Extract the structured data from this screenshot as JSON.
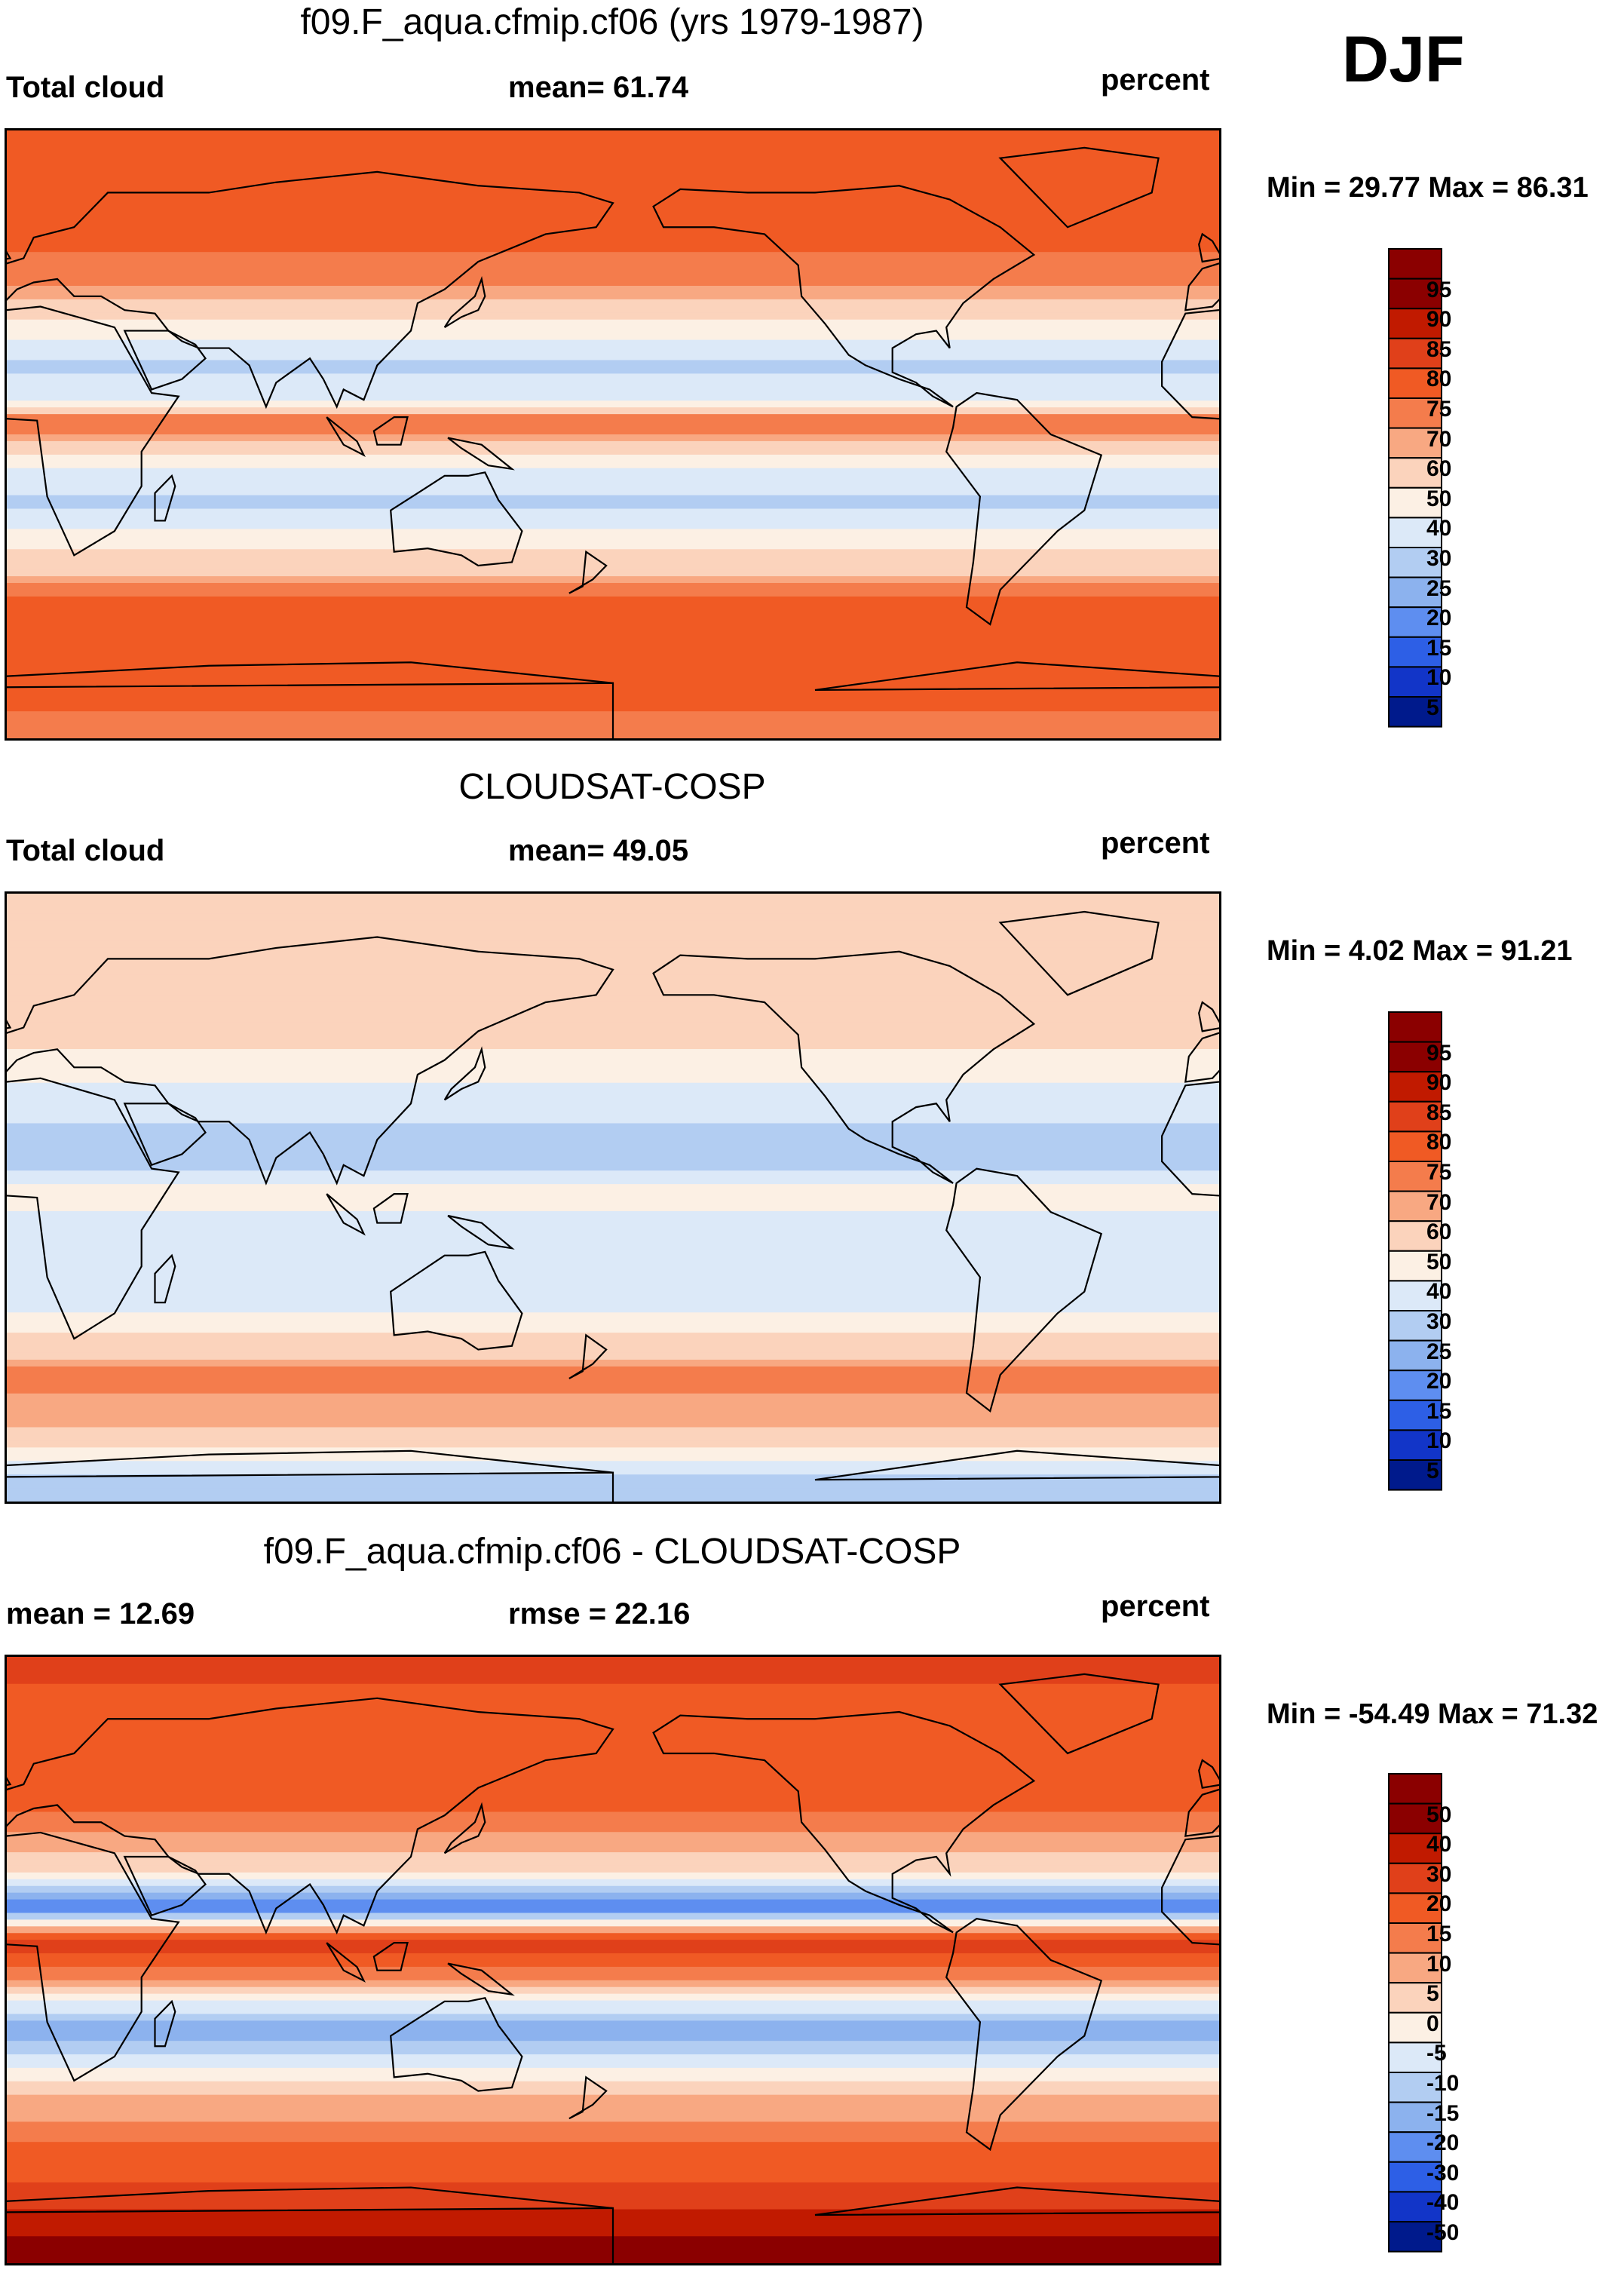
{
  "season": "DJF",
  "units": "percent",
  "chart_data": [
    {
      "type": "heatmap",
      "title": "f09.F_aqua.cfmip.cf06 (yrs 1979-1987)",
      "variable": "Total cloud",
      "mean_label": "mean=  61.74",
      "mean": 61.74,
      "units": "percent",
      "minmax_label": "Min =  29.77 Max =  86.31",
      "min": 29.77,
      "max": 86.31,
      "colorbar_levels": [
        "95",
        "90",
        "85",
        "80",
        "75",
        "70",
        "60",
        "50",
        "40",
        "30",
        "25",
        "20",
        "15",
        "10",
        "5"
      ],
      "colorbar_colors": [
        "#8b0000",
        "#c11a00",
        "#e0401a",
        "#f05a24",
        "#f47c4c",
        "#f8a882",
        "#fbd3bc",
        "#fcf0e4",
        "#dce9f8",
        "#b2cdf2",
        "#8cb2ee",
        "#5e8ef0",
        "#2d5fe6",
        "#1235c8",
        "#001a8c"
      ],
      "zonal_profile": [
        {
          "lat": 90,
          "value": 80
        },
        {
          "lat": 60,
          "value": 82
        },
        {
          "lat": 45,
          "value": 78
        },
        {
          "lat": 30,
          "value": 55
        },
        {
          "lat": 20,
          "value": 36
        },
        {
          "lat": 10,
          "value": 48
        },
        {
          "lat": 5,
          "value": 80
        },
        {
          "lat": 0,
          "value": 74
        },
        {
          "lat": -10,
          "value": 48
        },
        {
          "lat": -20,
          "value": 36
        },
        {
          "lat": -35,
          "value": 62
        },
        {
          "lat": -50,
          "value": 84
        },
        {
          "lat": -70,
          "value": 82
        },
        {
          "lat": -90,
          "value": 78
        }
      ]
    },
    {
      "type": "heatmap",
      "title": "CLOUDSAT-COSP",
      "variable": "Total cloud",
      "mean_label": "mean=  49.05",
      "mean": 49.05,
      "units": "percent",
      "minmax_label": "Min =   4.02 Max =  91.21",
      "min": 4.02,
      "max": 91.21,
      "colorbar_levels": [
        "95",
        "90",
        "85",
        "80",
        "75",
        "70",
        "60",
        "50",
        "40",
        "30",
        "25",
        "20",
        "15",
        "10",
        "5"
      ],
      "colorbar_colors": [
        "#8b0000",
        "#c11a00",
        "#e0401a",
        "#f05a24",
        "#f47c4c",
        "#f8a882",
        "#fbd3bc",
        "#fcf0e4",
        "#dce9f8",
        "#b2cdf2",
        "#8cb2ee",
        "#5e8ef0",
        "#2d5fe6",
        "#1235c8",
        "#001a8c"
      ],
      "zonal_profile": [
        {
          "lat": 80,
          "value": 60
        },
        {
          "lat": 50,
          "value": 65
        },
        {
          "lat": 30,
          "value": 45
        },
        {
          "lat": 15,
          "value": 30
        },
        {
          "lat": 5,
          "value": 55
        },
        {
          "lat": -10,
          "value": 40
        },
        {
          "lat": -25,
          "value": 45
        },
        {
          "lat": -45,
          "value": 78
        },
        {
          "lat": -60,
          "value": 70
        },
        {
          "lat": -75,
          "value": 35
        }
      ]
    },
    {
      "type": "heatmap",
      "title": "f09.F_aqua.cfmip.cf06 - CLOUDSAT-COSP",
      "mean_label": "mean =  12.69",
      "mean": 12.69,
      "rmse_label": "rmse =  22.16",
      "rmse": 22.16,
      "units": "percent",
      "minmax_label": "Min = -54.49 Max =  71.32",
      "min": -54.49,
      "max": 71.32,
      "colorbar_levels": [
        "50",
        "40",
        "30",
        "20",
        "15",
        "10",
        "5",
        "0",
        "-5",
        "-10",
        "-15",
        "-20",
        "-30",
        "-40",
        "-50"
      ],
      "colorbar_colors": [
        "#8b0000",
        "#c11a00",
        "#e0401a",
        "#f05a24",
        "#f47c4c",
        "#f8a882",
        "#fbd3bc",
        "#fcf0e4",
        "#dce9f8",
        "#b2cdf2",
        "#8cb2ee",
        "#5e8ef0",
        "#2d5fe6",
        "#1235c8",
        "#001a8c"
      ],
      "zonal_profile": [
        {
          "lat": 80,
          "value": 30
        },
        {
          "lat": 50,
          "value": 25
        },
        {
          "lat": 25,
          "value": 5
        },
        {
          "lat": 15,
          "value": -20
        },
        {
          "lat": 5,
          "value": 35
        },
        {
          "lat": -10,
          "value": 5
        },
        {
          "lat": -20,
          "value": -15
        },
        {
          "lat": -40,
          "value": 10
        },
        {
          "lat": -65,
          "value": 30
        },
        {
          "lat": -80,
          "value": 50
        }
      ]
    }
  ]
}
